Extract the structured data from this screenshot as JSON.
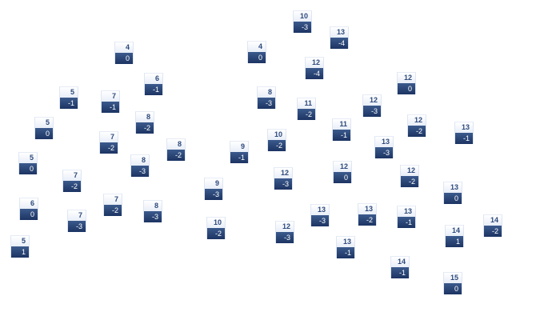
{
  "nodes": [
    {
      "top": "4",
      "bottom": "0"
    },
    {
      "top": "6",
      "bottom": "-1"
    },
    {
      "top": "5",
      "bottom": "-1"
    },
    {
      "top": "7",
      "bottom": "-1"
    },
    {
      "top": "5",
      "bottom": "0"
    },
    {
      "top": "8",
      "bottom": "-2"
    },
    {
      "top": "7",
      "bottom": "-2"
    },
    {
      "top": "8",
      "bottom": "-2"
    },
    {
      "top": "5",
      "bottom": "0"
    },
    {
      "top": "8",
      "bottom": "-3"
    },
    {
      "top": "7",
      "bottom": "-2"
    },
    {
      "top": "6",
      "bottom": "0"
    },
    {
      "top": "7",
      "bottom": "-2"
    },
    {
      "top": "8",
      "bottom": "-3"
    },
    {
      "top": "7",
      "bottom": "-3"
    },
    {
      "top": "5",
      "bottom": "1"
    },
    {
      "top": "10",
      "bottom": "-3"
    },
    {
      "top": "13",
      "bottom": "-4"
    },
    {
      "top": "4",
      "bottom": "0"
    },
    {
      "top": "12",
      "bottom": "-4"
    },
    {
      "top": "8",
      "bottom": "-3"
    },
    {
      "top": "11",
      "bottom": "-2"
    },
    {
      "top": "12",
      "bottom": "-3"
    },
    {
      "top": "11",
      "bottom": "-1"
    },
    {
      "top": "10",
      "bottom": "-2"
    },
    {
      "top": "9",
      "bottom": "-1"
    },
    {
      "top": "12",
      "bottom": "0"
    },
    {
      "top": "12",
      "bottom": "-3"
    },
    {
      "top": "9",
      "bottom": "-3"
    },
    {
      "top": "13",
      "bottom": "-3"
    },
    {
      "top": "13",
      "bottom": "-2"
    },
    {
      "top": "10",
      "bottom": "-2"
    },
    {
      "top": "12",
      "bottom": "-3"
    },
    {
      "top": "13",
      "bottom": "-1"
    },
    {
      "top": "12",
      "bottom": "0"
    },
    {
      "top": "12",
      "bottom": "-2"
    },
    {
      "top": "13",
      "bottom": "-1"
    },
    {
      "top": "13",
      "bottom": "-3"
    },
    {
      "top": "12",
      "bottom": "-2"
    },
    {
      "top": "13",
      "bottom": "0"
    },
    {
      "top": "13",
      "bottom": "-1"
    },
    {
      "top": "14",
      "bottom": "-2"
    },
    {
      "top": "14",
      "bottom": "1"
    },
    {
      "top": "14",
      "bottom": "-1"
    },
    {
      "top": "15",
      "bottom": "0"
    }
  ],
  "colors": {
    "header_text": "#2e4a7c",
    "value_bg": "#1c3463",
    "value_text": "#ffffff"
  }
}
